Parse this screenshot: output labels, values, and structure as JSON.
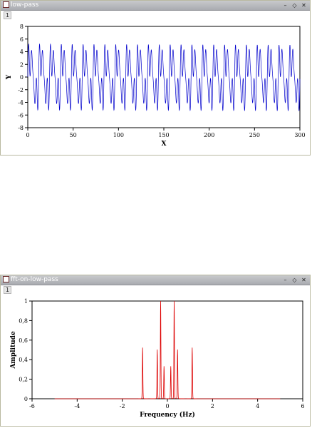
{
  "windows": [
    {
      "title": "low-pass",
      "tab_label": "1",
      "controls": {
        "minimize": "–",
        "restore": "◇",
        "close": "✕"
      },
      "chart_data": {
        "type": "line",
        "xlabel": "X",
        "ylabel": "Y",
        "xlim": [
          0,
          300
        ],
        "ylim": [
          -8,
          8
        ],
        "xticks": [
          0,
          50,
          100,
          150,
          200,
          250,
          300
        ],
        "yticks": [
          -8,
          -6,
          -4,
          -2,
          0,
          2,
          4,
          6,
          8
        ],
        "line_color": "#0000cc",
        "grid": false,
        "series_description_components": [
          {
            "amplitude": 3.2,
            "frequency": 0.0833
          },
          {
            "amplitude": 2.2,
            "frequency": 0.25
          },
          {
            "amplitude": 1.6,
            "frequency": 0.3333
          }
        ]
      }
    },
    {
      "title": "fft-on-low-pass",
      "tab_label": "1",
      "controls": {
        "minimize": "–",
        "restore": "◇",
        "close": "✕"
      },
      "chart_data": {
        "type": "line",
        "xlabel": "Frequency (Hz)",
        "ylabel": "Amplitude",
        "xlim": [
          -6,
          6
        ],
        "ylim": [
          0,
          1
        ],
        "xticks": [
          -6,
          -4,
          -2,
          0,
          2,
          4,
          6
        ],
        "yticks": [
          0,
          0.2,
          0.4,
          0.6,
          0.8,
          1
        ],
        "ytick_labels": [
          "0",
          "0,2",
          "0,4",
          "0,6",
          "0,8",
          "1"
        ],
        "line_color": "#dd0000",
        "grid": false,
        "x_range_data": [
          -5,
          5
        ],
        "peaks": [
          {
            "x": -1.1,
            "y": 0.52
          },
          {
            "x": -0.45,
            "y": 0.5
          },
          {
            "x": -0.3,
            "y": 1.0
          },
          {
            "x": -0.15,
            "y": 0.33
          },
          {
            "x": 0.15,
            "y": 0.33
          },
          {
            "x": 0.3,
            "y": 1.0
          },
          {
            "x": 0.45,
            "y": 0.5
          },
          {
            "x": 1.1,
            "y": 0.52
          }
        ]
      }
    }
  ]
}
